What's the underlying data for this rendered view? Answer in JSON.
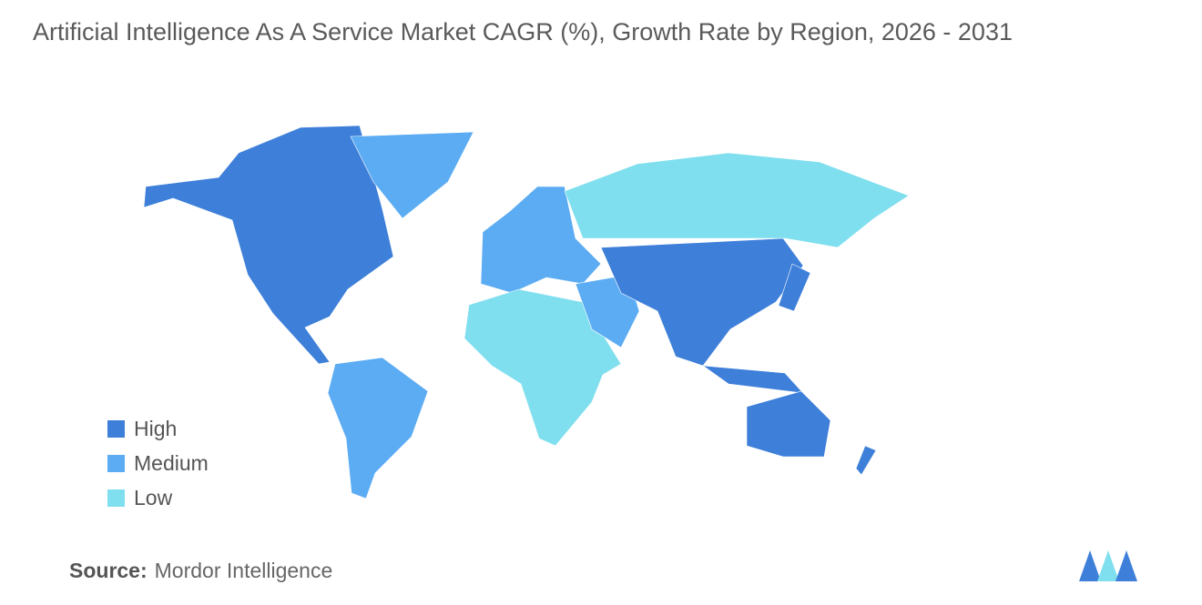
{
  "title": "Artificial Intelligence As A Service Market CAGR (%), Growth Rate by Region, 2026 - 2031",
  "legend": [
    {
      "name": "High",
      "color": "#3d7fd9"
    },
    {
      "name": "Medium",
      "color": "#5cacf3"
    },
    {
      "name": "Low",
      "color": "#7fdfee"
    }
  ],
  "source": {
    "label": "Source:",
    "text": "Mordor Intelligence"
  }
}
